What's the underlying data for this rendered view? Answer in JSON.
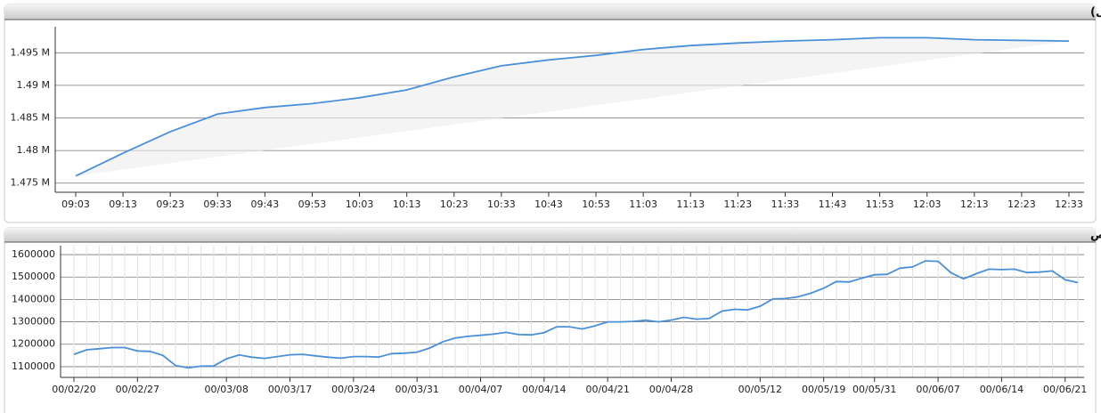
{
  "chart_data": [
    {
      "type": "line",
      "title": "شاخص کل (آخرین روز معاملاتی)",
      "categories": [
        "09:03",
        "09:13",
        "09:23",
        "09:33",
        "09:43",
        "09:53",
        "10:03",
        "10:13",
        "10:23",
        "10:33",
        "10:43",
        "10:53",
        "11:03",
        "11:13",
        "11:23",
        "11:33",
        "11:43",
        "11:53",
        "12:03",
        "12:13",
        "12:23",
        "12:33"
      ],
      "series": [
        {
          "color": "#4a90d9",
          "values": [
            1476100,
            1479600,
            1482900,
            1485600,
            1486600,
            1487200,
            1488100,
            1489300,
            1491300,
            1493000,
            1493900,
            1494600,
            1495500,
            1496100,
            1496500,
            1496800,
            1497000,
            1497300,
            1497300,
            1497000,
            1496900,
            1496800
          ]
        }
      ],
      "ylim": [
        1473600,
        1499000
      ],
      "yticks": [
        {
          "value": 1475000,
          "label": "1.475 M"
        },
        {
          "value": 1480000,
          "label": "1.48 M"
        },
        {
          "value": 1485000,
          "label": "1.485 M"
        },
        {
          "value": 1490000,
          "label": "1.49 M"
        },
        {
          "value": 1495000,
          "label": "1.495 M"
        }
      ],
      "grid": true,
      "shade": true
    },
    {
      "type": "line",
      "title": "نمودار شاخص",
      "categories": [
        "00/02/20",
        null,
        null,
        null,
        null,
        "00/02/27",
        null,
        null,
        null,
        null,
        null,
        null,
        "00/03/08",
        null,
        null,
        null,
        null,
        "00/03/17",
        null,
        null,
        null,
        null,
        "00/03/24",
        null,
        null,
        null,
        null,
        "00/03/31",
        null,
        null,
        null,
        null,
        "00/04/07",
        null,
        null,
        null,
        null,
        "00/04/14",
        null,
        null,
        null,
        null,
        "00/04/21",
        null,
        null,
        null,
        null,
        "00/04/28",
        null,
        null,
        null,
        null,
        null,
        null,
        "00/05/12",
        null,
        null,
        null,
        null,
        "00/05/19",
        null,
        null,
        null,
        "00/05/31",
        null,
        null,
        null,
        null,
        "00/06/07",
        null,
        null,
        null,
        null,
        "00/06/14",
        null,
        null,
        null,
        null,
        "00/06/21",
        null
      ],
      "series": [
        {
          "color": "#4a90d9",
          "values": [
            1155000,
            1175000,
            1180000,
            1185000,
            1185000,
            1170000,
            1168000,
            1150000,
            1105000,
            1095000,
            1102000,
            1103000,
            1135000,
            1152000,
            1142000,
            1137000,
            1145000,
            1153000,
            1155000,
            1148000,
            1142000,
            1138000,
            1145000,
            1145000,
            1143000,
            1158000,
            1160000,
            1165000,
            1183000,
            1210000,
            1228000,
            1235000,
            1240000,
            1245000,
            1253000,
            1243000,
            1242000,
            1252000,
            1278000,
            1278000,
            1268000,
            1282000,
            1300000,
            1300000,
            1302000,
            1307000,
            1300000,
            1308000,
            1320000,
            1312000,
            1315000,
            1348000,
            1356000,
            1353000,
            1370000,
            1402000,
            1404000,
            1412000,
            1428000,
            1450000,
            1480000,
            1478000,
            1495000,
            1510000,
            1512000,
            1540000,
            1545000,
            1572000,
            1570000,
            1520000,
            1492000,
            1515000,
            1535000,
            1533000,
            1535000,
            1520000,
            1522000,
            1527000,
            1488000,
            1475000
          ]
        }
      ],
      "ylim": [
        1052000,
        1640000
      ],
      "yticks": [
        1100000,
        1200000,
        1300000,
        1400000,
        1500000,
        1600000
      ],
      "grid": true,
      "xgrid": true
    }
  ]
}
